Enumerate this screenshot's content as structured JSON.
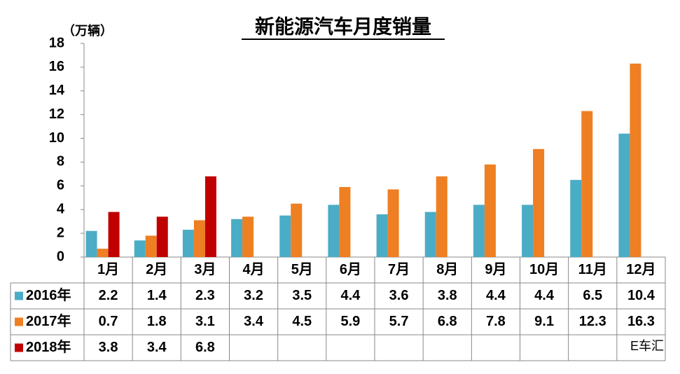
{
  "chart_data": {
    "type": "bar",
    "title": "新能源汽车月度销量",
    "y_label": "（万辆）",
    "categories": [
      "1月",
      "2月",
      "3月",
      "4月",
      "5月",
      "6月",
      "7月",
      "8月",
      "9月",
      "10月",
      "11月",
      "12月"
    ],
    "series": [
      {
        "name": "2016年",
        "color": "#4bacc6",
        "values": [
          2.2,
          1.4,
          2.3,
          3.2,
          3.5,
          4.4,
          3.6,
          3.8,
          4.4,
          4.4,
          6.5,
          10.4
        ]
      },
      {
        "name": "2017年",
        "color": "#ee7f22",
        "values": [
          0.7,
          1.8,
          3.1,
          3.4,
          4.5,
          5.9,
          5.7,
          6.8,
          7.8,
          9.1,
          12.3,
          16.3
        ]
      },
      {
        "name": "2018年",
        "color": "#c00000",
        "values": [
          3.8,
          3.4,
          6.8,
          null,
          null,
          null,
          null,
          null,
          null,
          null,
          null,
          null
        ]
      }
    ],
    "ylim": [
      0,
      18
    ],
    "yticks": [
      0,
      2,
      4,
      6,
      8,
      10,
      12,
      14,
      16,
      18
    ],
    "grid": false,
    "watermark": "E车汇"
  }
}
